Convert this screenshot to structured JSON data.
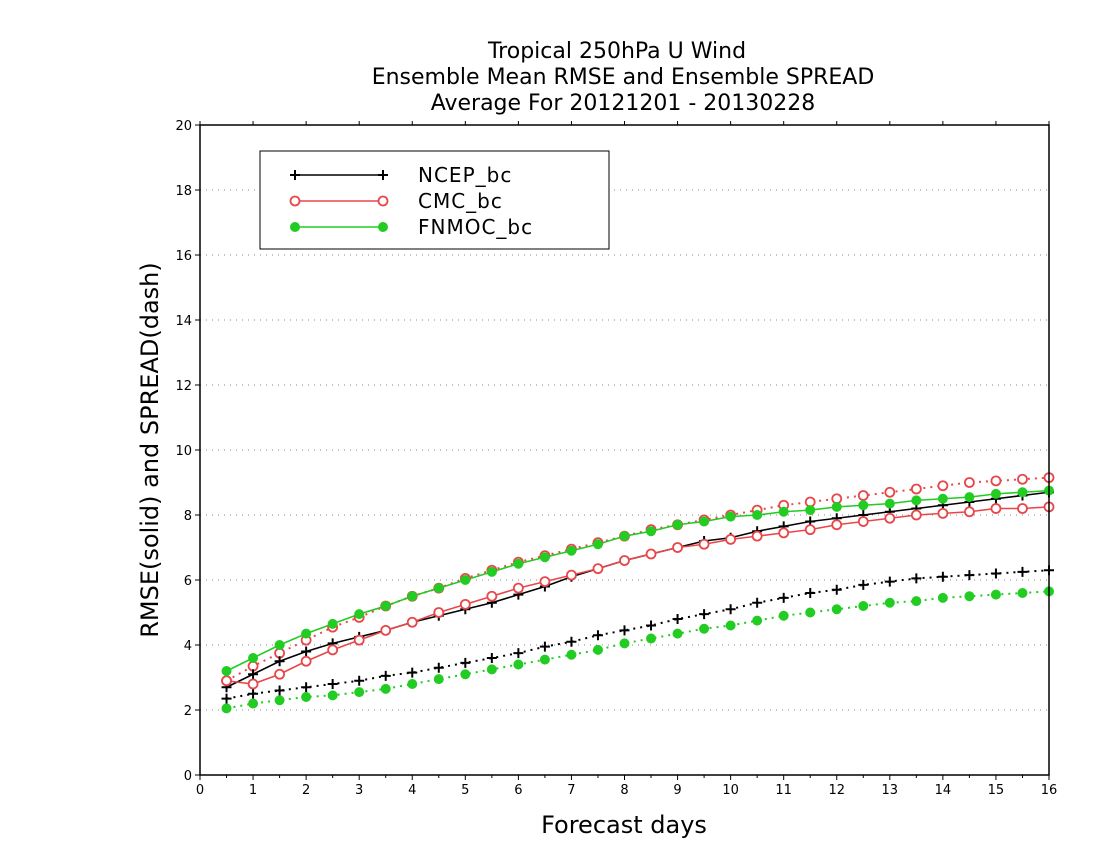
{
  "chart_data": {
    "type": "line",
    "title": [
      "Tropical 250hPa U Wind",
      "Ensemble Mean RMSE and Ensemble SPREAD",
      "Average For 20121201 - 20130228"
    ],
    "xlabel": "Forecast days",
    "ylabel": "RMSE(solid) and SPREAD(dash)",
    "xlim": [
      0,
      16
    ],
    "ylim": [
      0,
      20
    ],
    "xticks": [
      "0",
      "1",
      "2",
      "3",
      "4",
      "5",
      "6",
      "7",
      "8",
      "9",
      "10",
      "11",
      "12",
      "13",
      "14",
      "15",
      "16"
    ],
    "yticks": [
      "0",
      "2",
      "4",
      "6",
      "8",
      "10",
      "12",
      "14",
      "16",
      "18",
      "20"
    ],
    "grid": true,
    "legend_position": "top-left",
    "x": [
      0.5,
      1,
      1.5,
      2,
      2.5,
      3,
      3.5,
      4,
      4.5,
      5,
      5.5,
      6,
      6.5,
      7,
      7.5,
      8,
      8.5,
      9,
      9.5,
      10,
      10.5,
      11,
      11.5,
      12,
      12.5,
      13,
      13.5,
      14,
      14.5,
      15,
      15.5,
      16
    ],
    "series": [
      {
        "name": "NCEP_bc",
        "color": "#000000",
        "marker": "plus",
        "rmse": [
          2.7,
          3.1,
          3.5,
          3.8,
          4.05,
          4.25,
          4.45,
          4.7,
          4.9,
          5.1,
          5.3,
          5.55,
          5.8,
          6.1,
          6.35,
          6.6,
          6.8,
          7.0,
          7.2,
          7.3,
          7.5,
          7.65,
          7.8,
          7.9,
          8.0,
          8.1,
          8.2,
          8.3,
          8.4,
          8.5,
          8.6,
          8.7
        ],
        "spread": [
          2.35,
          2.5,
          2.6,
          2.7,
          2.8,
          2.9,
          3.05,
          3.15,
          3.3,
          3.45,
          3.6,
          3.75,
          3.95,
          4.1,
          4.3,
          4.45,
          4.6,
          4.8,
          4.95,
          5.1,
          5.3,
          5.45,
          5.6,
          5.7,
          5.85,
          5.95,
          6.05,
          6.1,
          6.15,
          6.2,
          6.25,
          6.3
        ]
      },
      {
        "name": "CMC_bc",
        "color": "#e8474a",
        "marker": "open-circle",
        "rmse": [
          2.9,
          2.8,
          3.1,
          3.5,
          3.85,
          4.15,
          4.45,
          4.7,
          5.0,
          5.25,
          5.5,
          5.75,
          5.95,
          6.15,
          6.35,
          6.6,
          6.8,
          7.0,
          7.1,
          7.25,
          7.35,
          7.45,
          7.55,
          7.7,
          7.8,
          7.9,
          8.0,
          8.05,
          8.1,
          8.2,
          8.2,
          8.25
        ],
        "spread": [
          2.9,
          3.35,
          3.75,
          4.15,
          4.55,
          4.85,
          5.2,
          5.5,
          5.75,
          6.05,
          6.3,
          6.55,
          6.75,
          6.95,
          7.15,
          7.35,
          7.55,
          7.7,
          7.85,
          8.0,
          8.15,
          8.3,
          8.4,
          8.5,
          8.6,
          8.7,
          8.8,
          8.9,
          9.0,
          9.05,
          9.1,
          9.15
        ]
      },
      {
        "name": "FNMOC_bc",
        "color": "#22cc22",
        "marker": "filled-circle",
        "rmse": [
          3.2,
          3.6,
          4.0,
          4.35,
          4.65,
          4.95,
          5.2,
          5.5,
          5.75,
          6.0,
          6.25,
          6.5,
          6.7,
          6.9,
          7.1,
          7.35,
          7.5,
          7.7,
          7.8,
          7.95,
          8.0,
          8.1,
          8.15,
          8.25,
          8.3,
          8.35,
          8.45,
          8.5,
          8.55,
          8.65,
          8.7,
          8.75
        ],
        "spread": [
          2.05,
          2.2,
          2.3,
          2.4,
          2.45,
          2.55,
          2.65,
          2.8,
          2.95,
          3.1,
          3.25,
          3.4,
          3.55,
          3.7,
          3.85,
          4.05,
          4.2,
          4.35,
          4.5,
          4.6,
          4.75,
          4.9,
          5.0,
          5.1,
          5.2,
          5.3,
          5.35,
          5.45,
          5.5,
          5.55,
          5.6,
          5.65
        ]
      }
    ]
  }
}
